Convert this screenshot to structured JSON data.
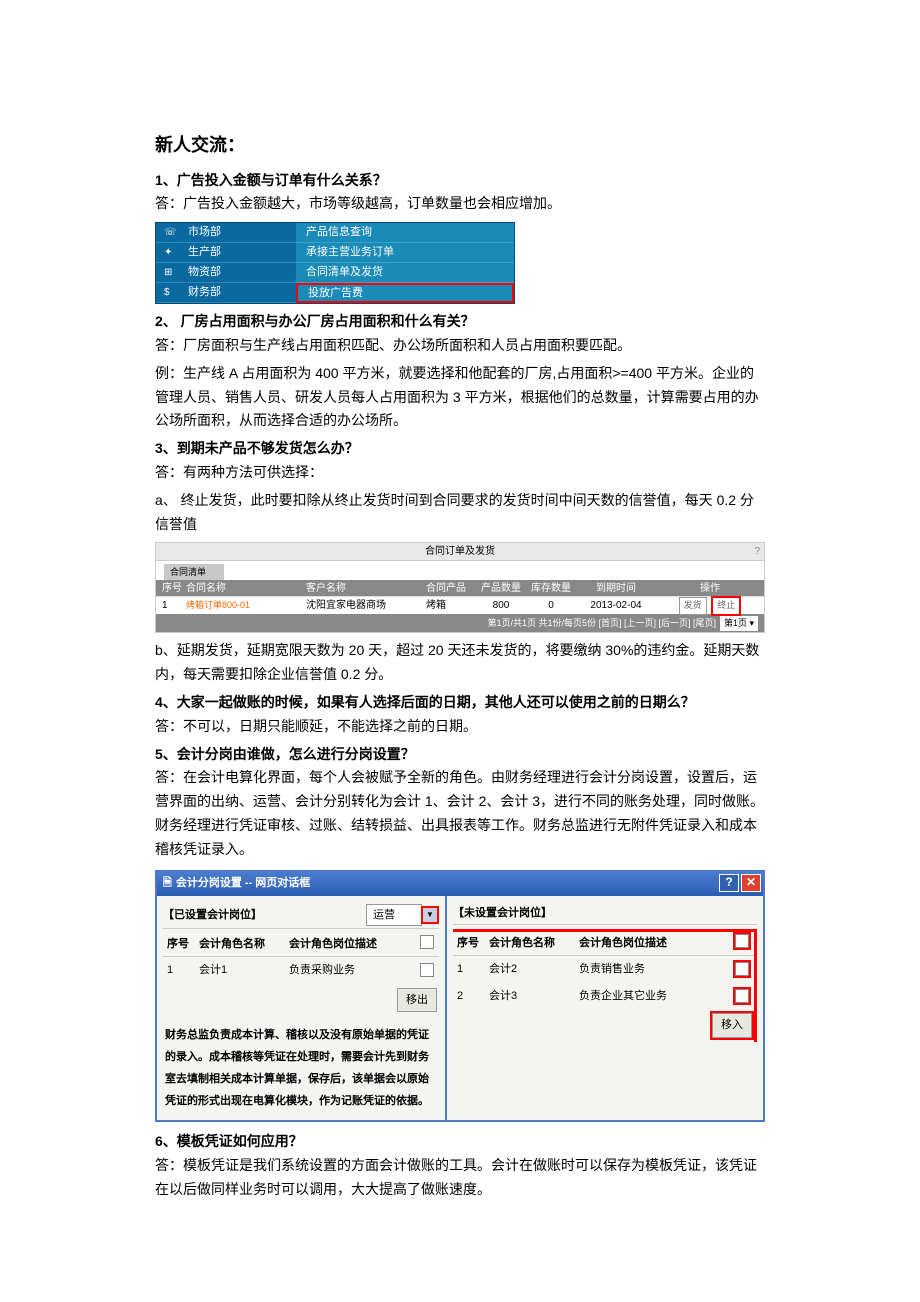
{
  "document": {
    "title": "新人交流：",
    "q1": {
      "question": "1、广告投入金额与订单有什么关系？",
      "answer": "答：广告投入金额越大，市场等级越高，订单数量也会相应增加。"
    },
    "menu": {
      "left_items": [
        {
          "icon": "☏",
          "label": "市场部"
        },
        {
          "icon": "✦",
          "label": "生产部"
        },
        {
          "icon": "⊞",
          "label": "物资部"
        },
        {
          "icon": "$",
          "label": "财务部"
        }
      ],
      "right_items": [
        "产品信息查询",
        "承接主营业务订单",
        "合同清单及发货",
        "投放广告费"
      ],
      "highlighted_index": 3,
      "colors": {
        "left_bg": "#0a6aa0",
        "right_bg": "#1a8ab8",
        "highlight_border": "#ff0000"
      }
    },
    "q2": {
      "question": "2、 厂房占用面积与办公厂房占用面积和什么有关？",
      "a1": "答：厂房面积与生产线占用面积匹配、办公场所面积和人员占用面积要匹配。",
      "a2": "例：生产线 A 占用面积为 400 平方米，就要选择和他配套的厂房,占用面积>=400 平方米。企业的管理人员、销售人员、研发人员每人占用面积为 3 平方米，根据他们的总数量，计算需要占用的办公场所面积，从而选择合适的办公场所。"
    },
    "q3": {
      "question": "3、到期未产品不够发货怎么办？",
      "a1": "答：有两种方法可供选择：",
      "a2": "a、 终止发货，此时要扣除从终止发货时间到合同要求的发货时间中间天数的信誉值，每天 0.2 分信誉值",
      "a3": "b、延期发货，延期宽限天数为 20 天，超过 20 天还未发货的，将要缴纳 30%的违约金。延期天数内，每天需要扣除企业信誉值 0.2 分。"
    },
    "table": {
      "title": "合同订单及发货",
      "tab": "合同清单",
      "columns": [
        "序号",
        "合同名称",
        "客户名称",
        "合同产品",
        "产品数量",
        "库存数量",
        "到期时间",
        "操作"
      ],
      "row": {
        "seq": "1",
        "contract_name": "烤箱订单800-01",
        "customer": "沈阳宜家电器商场",
        "product": "烤箱",
        "qty": "800",
        "stock": "0",
        "due": "2013-02-04",
        "action_deliver": "发货",
        "action_stop": "终止"
      },
      "footer": "第1页/共1页 共1份/每页5份 [首页] [上一页] [后一页] [尾页]",
      "page_select": "第1页 ▾",
      "colors": {
        "header_bg": "#888888",
        "highlight_border": "#ff0000"
      }
    },
    "q4": {
      "question": "4、大家一起做账的时候，如果有人选择后面的日期，其他人还可以使用之前的日期么？",
      "answer": "答：不可以，日期只能顺延，不能选择之前的日期。"
    },
    "q5": {
      "question": "5、会计分岗由谁做，怎么进行分岗设置？",
      "answer": "答：在会计电算化界面，每个人会被赋予全新的角色。由财务经理进行会计分岗设置，设置后，运营界面的出纳、运营、会计分别转化为会计 1、会计 2、会计 3，进行不同的账务处理，同时做账。财务经理进行凭证审核、过账、结转损益、出具报表等工作。财务总监进行无附件凭证录入和成本稽核凭证录入。"
    },
    "dialog": {
      "title": "会计分岗设置  --  网页对话框",
      "left": {
        "bracket": "【已设置会计岗位】",
        "select_value": "运营",
        "columns": [
          "序号",
          "会计角色名称",
          "会计角色岗位描述"
        ],
        "rows": [
          {
            "seq": "1",
            "name": "会计1",
            "desc": "负责采购业务"
          }
        ],
        "move_btn": "移出",
        "note": "财务总监负责成本计算、稽核以及没有原始单据的凭证的录入。成本稽核等凭证在处理时，需要会计先到财务室去填制相关成本计算单据，保存后，该单据会以原始凭证的形式出现在电算化模块，作为记账凭证的依据。"
      },
      "right": {
        "bracket": "【未设置会计岗位】",
        "columns": [
          "序号",
          "会计角色名称",
          "会计角色岗位描述"
        ],
        "rows": [
          {
            "seq": "1",
            "name": "会计2",
            "desc": "负责销售业务"
          },
          {
            "seq": "2",
            "name": "会计3",
            "desc": "负责企业其它业务"
          }
        ],
        "move_btn": "移入"
      },
      "colors": {
        "title_bg_top": "#4a7dd0",
        "title_bg_bottom": "#2a5db0",
        "close_bg": "#e04030",
        "highlight_border": "#ff0000"
      }
    },
    "q6": {
      "question": "6、模板凭证如何应用？",
      "answer": "答：模板凭证是我们系统设置的方面会计做账的工具。会计在做账时可以保存为模板凭证，该凭证在以后做同样业务时可以调用，大大提高了做账速度。"
    }
  }
}
